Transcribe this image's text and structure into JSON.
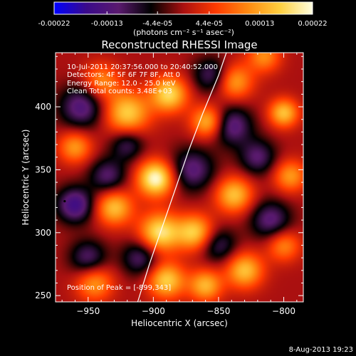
{
  "colorbar": {
    "ticks": [
      "-0.00022",
      "-0.00013",
      "-4.4e-05",
      "4.4e-05",
      "0.00013",
      "0.00022"
    ],
    "tick_values": [
      -0.00022,
      -0.00013,
      -4.4e-05,
      4.4e-05,
      0.00013,
      0.00022
    ],
    "range": [
      -0.00022,
      0.00022
    ],
    "unit_label": "(photons cm⁻² s⁻¹ asec⁻²)",
    "colors": [
      "#0000ff",
      "#3a0a8a",
      "#5a1a6e",
      "#000000",
      "#aa1010",
      "#ff3a00",
      "#ff8a10",
      "#ffd040",
      "#ffffe0"
    ]
  },
  "chart_data": {
    "type": "heatmap",
    "title": "Reconstructed RHESSI Image",
    "xlabel": "Heliocentric X (arcsec)",
    "ylabel": "Heliocentric Y (arcsec)",
    "xlim": [
      -975,
      -785
    ],
    "ylim": [
      245,
      443
    ],
    "xticks": [
      -950,
      -900,
      -850,
      -800
    ],
    "xtick_labels": [
      "−950",
      "−900",
      "−850",
      "−800"
    ],
    "yticks": [
      250,
      300,
      350,
      400
    ],
    "ytick_labels": [
      "250",
      "300",
      "350",
      "400"
    ],
    "annotations": {
      "time": "10-Jul-2011 20:37:56.000 to 20:40:52.000",
      "detectors": "Detectors: 4F 5F 6F 7F 8F, Att 0",
      "energy": "Energy Range: 12.0 - 25.0 keV",
      "method": "Clean    Total counts: 3.48E+03",
      "peak": "Position of Peak = [-899,343]"
    },
    "peak_position": [
      -899,
      343
    ],
    "limb_curve": [
      [
        -912,
        245
      ],
      [
        -903,
        275
      ],
      [
        -893,
        305
      ],
      [
        -883,
        335
      ],
      [
        -873,
        365
      ],
      [
        -862,
        395
      ],
      [
        -850,
        425
      ],
      [
        -844,
        443
      ]
    ],
    "sources": [
      {
        "x": -898,
        "y": 343,
        "amp": 1.0,
        "w": 10
      },
      {
        "x": -920,
        "y": 395,
        "amp": 0.75,
        "w": 12
      },
      {
        "x": -888,
        "y": 410,
        "amp": 0.8,
        "w": 10
      },
      {
        "x": -858,
        "y": 388,
        "amp": 0.7,
        "w": 9
      },
      {
        "x": -838,
        "y": 420,
        "amp": 0.6,
        "w": 10
      },
      {
        "x": -800,
        "y": 395,
        "amp": 0.7,
        "w": 8
      },
      {
        "x": -795,
        "y": 345,
        "amp": 0.55,
        "w": 9
      },
      {
        "x": -838,
        "y": 330,
        "amp": 0.7,
        "w": 10
      },
      {
        "x": -868,
        "y": 300,
        "amp": 0.75,
        "w": 10
      },
      {
        "x": -895,
        "y": 300,
        "amp": 0.85,
        "w": 11
      },
      {
        "x": -930,
        "y": 320,
        "amp": 0.7,
        "w": 10
      },
      {
        "x": -945,
        "y": 260,
        "amp": 0.55,
        "w": 10
      },
      {
        "x": -890,
        "y": 262,
        "amp": 0.75,
        "w": 10
      },
      {
        "x": -860,
        "y": 258,
        "amp": 0.65,
        "w": 9
      },
      {
        "x": -830,
        "y": 270,
        "amp": 0.7,
        "w": 10
      },
      {
        "x": -800,
        "y": 290,
        "amp": 0.5,
        "w": 9
      },
      {
        "x": -960,
        "y": 368,
        "amp": 0.55,
        "w": 9
      },
      {
        "x": -940,
        "y": 420,
        "amp": 0.5,
        "w": 10
      },
      {
        "x": -815,
        "y": 440,
        "amp": 0.5,
        "w": 9
      },
      {
        "x": -960,
        "y": 322,
        "amp": -0.7,
        "w": 10
      },
      {
        "x": -955,
        "y": 400,
        "amp": -0.6,
        "w": 12
      },
      {
        "x": -935,
        "y": 345,
        "amp": -0.5,
        "w": 10
      },
      {
        "x": -870,
        "y": 350,
        "amp": -0.55,
        "w": 12
      },
      {
        "x": -840,
        "y": 385,
        "amp": -0.6,
        "w": 11
      },
      {
        "x": -820,
        "y": 360,
        "amp": -0.5,
        "w": 10
      },
      {
        "x": -855,
        "y": 425,
        "amp": -0.5,
        "w": 10
      },
      {
        "x": -910,
        "y": 280,
        "amp": -0.5,
        "w": 10
      },
      {
        "x": -850,
        "y": 290,
        "amp": -0.45,
        "w": 10
      },
      {
        "x": -810,
        "y": 310,
        "amp": -0.55,
        "w": 11
      },
      {
        "x": -950,
        "y": 280,
        "amp": -0.5,
        "w": 10
      },
      {
        "x": -920,
        "y": 370,
        "amp": -0.45,
        "w": 9
      }
    ]
  },
  "footer": {
    "date": "8-Aug-2013 19:23"
  }
}
